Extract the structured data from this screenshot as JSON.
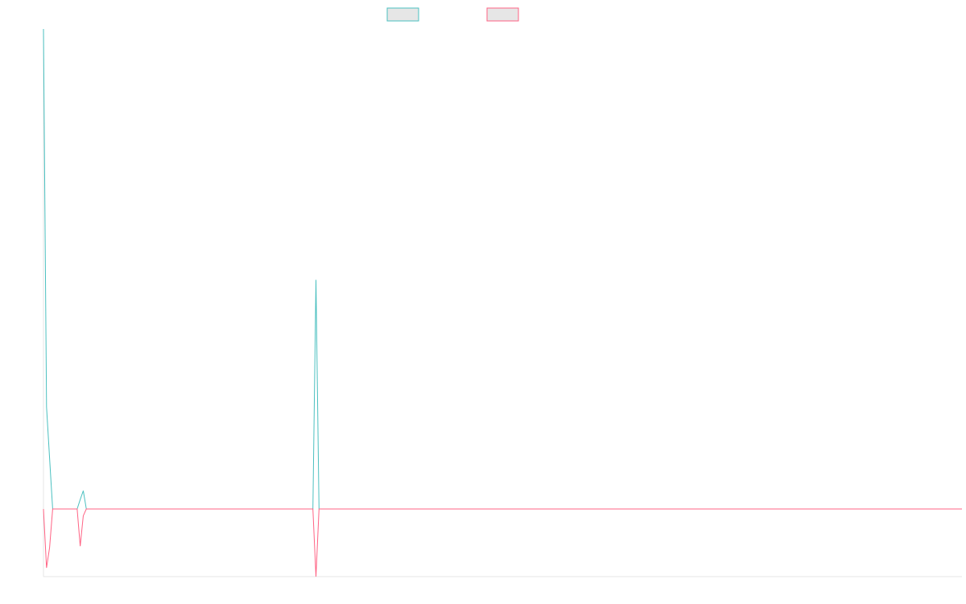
{
  "chart_data": {
    "type": "line",
    "x": [
      0,
      1,
      2,
      3,
      11,
      12,
      13,
      14,
      88,
      89,
      90,
      300
    ],
    "xlim": [
      0,
      300
    ],
    "ylim": [
      -1,
      7.1
    ],
    "series": [
      {
        "color": "#4bc0c0",
        "values": [
          7.1,
          1.51,
          0.75,
          0,
          0,
          0.14,
          0.27,
          0,
          0,
          3.39,
          0,
          0
        ]
      },
      {
        "color": "#ff6384",
        "values": [
          0,
          -0.87,
          -0.57,
          0,
          0,
          -0.55,
          -0.1,
          0,
          0,
          -1,
          0,
          0
        ]
      }
    ]
  }
}
